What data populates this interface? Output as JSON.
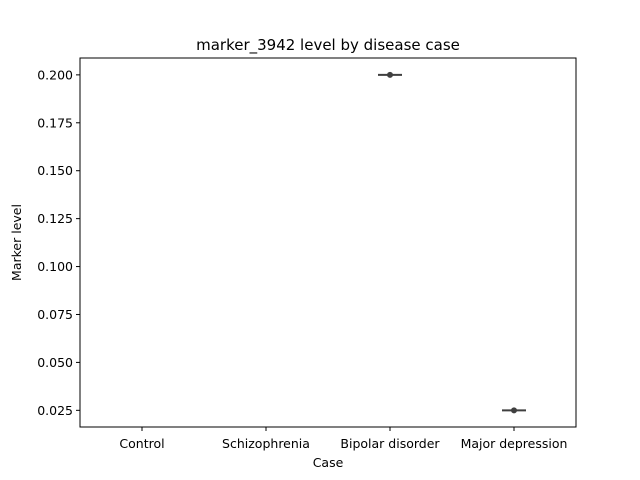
{
  "chart_data": {
    "type": "box",
    "title": "marker_3942 level by disease case",
    "xlabel": "Case",
    "ylabel": "Marker level",
    "categories": [
      "Control",
      "Schizophrenia",
      "Bipolar disorder",
      "Major depression"
    ],
    "values": [
      null,
      null,
      0.2,
      0.025
    ],
    "ylim": [
      0.0163,
      0.2088
    ],
    "yticks": [
      0.025,
      0.05,
      0.075,
      0.1,
      0.125,
      0.15,
      0.175,
      0.2
    ],
    "ytick_labels": [
      "0.025",
      "0.050",
      "0.075",
      "0.100",
      "0.125",
      "0.150",
      "0.175",
      "0.200"
    ],
    "grid": false,
    "mark_color": "#3f3f3f"
  }
}
